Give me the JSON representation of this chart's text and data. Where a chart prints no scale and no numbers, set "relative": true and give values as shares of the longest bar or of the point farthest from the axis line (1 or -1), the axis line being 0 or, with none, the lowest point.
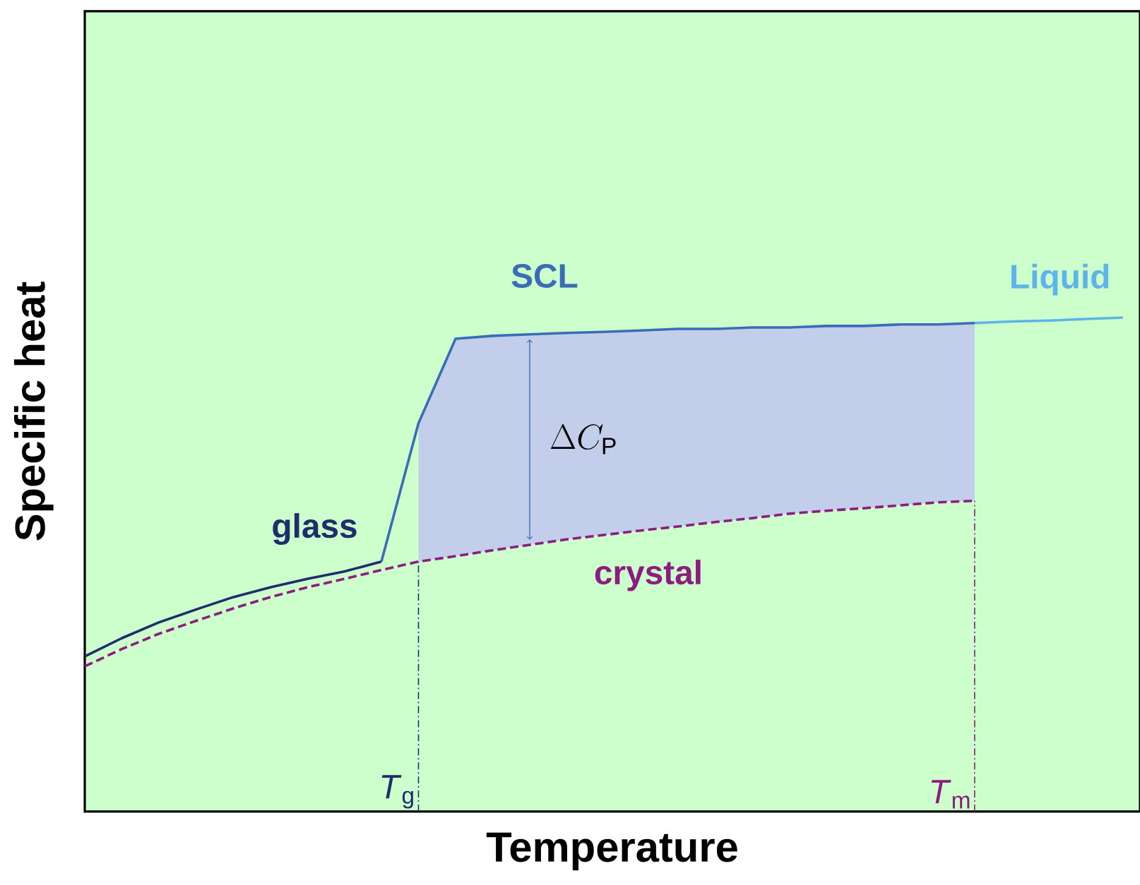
{
  "chart_data": {
    "type": "line",
    "relative": true,
    "xlabel": "Temperature",
    "ylabel": "Specific heat",
    "categories": [
      null,
      null,
      null,
      null,
      null,
      null,
      null,
      null,
      null,
      null,
      null,
      null,
      null,
      null,
      null,
      null,
      null,
      null,
      null,
      null,
      null,
      null,
      null,
      null,
      null,
      null,
      null,
      null,
      null
    ],
    "series": [
      {
        "name": "glass",
        "color": "#1f2d6b",
        "line_style": "solid",
        "values": [
          0.314,
          0.351,
          0.383,
          0.409,
          0.434,
          0.454,
          0.471,
          0.486,
          0.506,
          null,
          null,
          null,
          null,
          null,
          null,
          null,
          null,
          null,
          null,
          null,
          null,
          null,
          null,
          null,
          null,
          null,
          null,
          null,
          null
        ]
      },
      {
        "name": "SCL",
        "color": "#3a6db5",
        "line_style": "solid",
        "values": [
          null,
          null,
          null,
          null,
          null,
          null,
          null,
          null,
          0.506,
          0.786,
          0.957,
          0.963,
          0.966,
          0.969,
          0.971,
          0.974,
          0.977,
          0.977,
          0.98,
          0.98,
          0.983,
          0.983,
          0.986,
          0.986,
          0.989,
          null,
          null,
          null,
          null
        ],
        "lower": [
          null,
          null,
          null,
          null,
          null,
          null,
          null,
          null,
          null,
          0.506,
          0.517,
          0.529,
          0.54,
          0.551,
          0.56,
          0.569,
          0.577,
          0.586,
          0.594,
          0.603,
          0.609,
          0.614,
          0.62,
          0.626,
          0.629,
          null,
          null,
          null,
          null
        ],
        "upper": [
          null,
          null,
          null,
          null,
          null,
          null,
          null,
          null,
          null,
          0.786,
          0.957,
          0.963,
          0.966,
          0.969,
          0.971,
          0.974,
          0.977,
          0.977,
          0.98,
          0.98,
          0.983,
          0.983,
          0.986,
          0.986,
          0.989,
          null,
          null,
          null,
          null
        ]
      },
      {
        "name": "Liquid",
        "color": "#5db3ea",
        "line_style": "solid",
        "values": [
          null,
          null,
          null,
          null,
          null,
          null,
          null,
          null,
          null,
          null,
          null,
          null,
          null,
          null,
          null,
          null,
          null,
          null,
          null,
          null,
          null,
          null,
          null,
          null,
          0.989,
          0.992,
          0.994,
          0.997,
          1.0
        ]
      },
      {
        "name": "crystal",
        "color": "#8c1c7e",
        "line_style": "dashed",
        "values": [
          0.294,
          0.329,
          0.36,
          0.386,
          0.411,
          0.434,
          0.454,
          0.471,
          0.489,
          0.506,
          0.517,
          0.529,
          0.54,
          0.551,
          0.56,
          0.569,
          0.577,
          0.586,
          0.594,
          0.603,
          0.609,
          0.614,
          0.62,
          0.626,
          0.629,
          null,
          null,
          null,
          null
        ]
      }
    ],
    "annotations": [
      "\\Delta C_{\\mathrm{P}}",
      "*T*$_{g}$",
      "*T*$_{m}$"
    ],
    "marker": "none"
  }
}
